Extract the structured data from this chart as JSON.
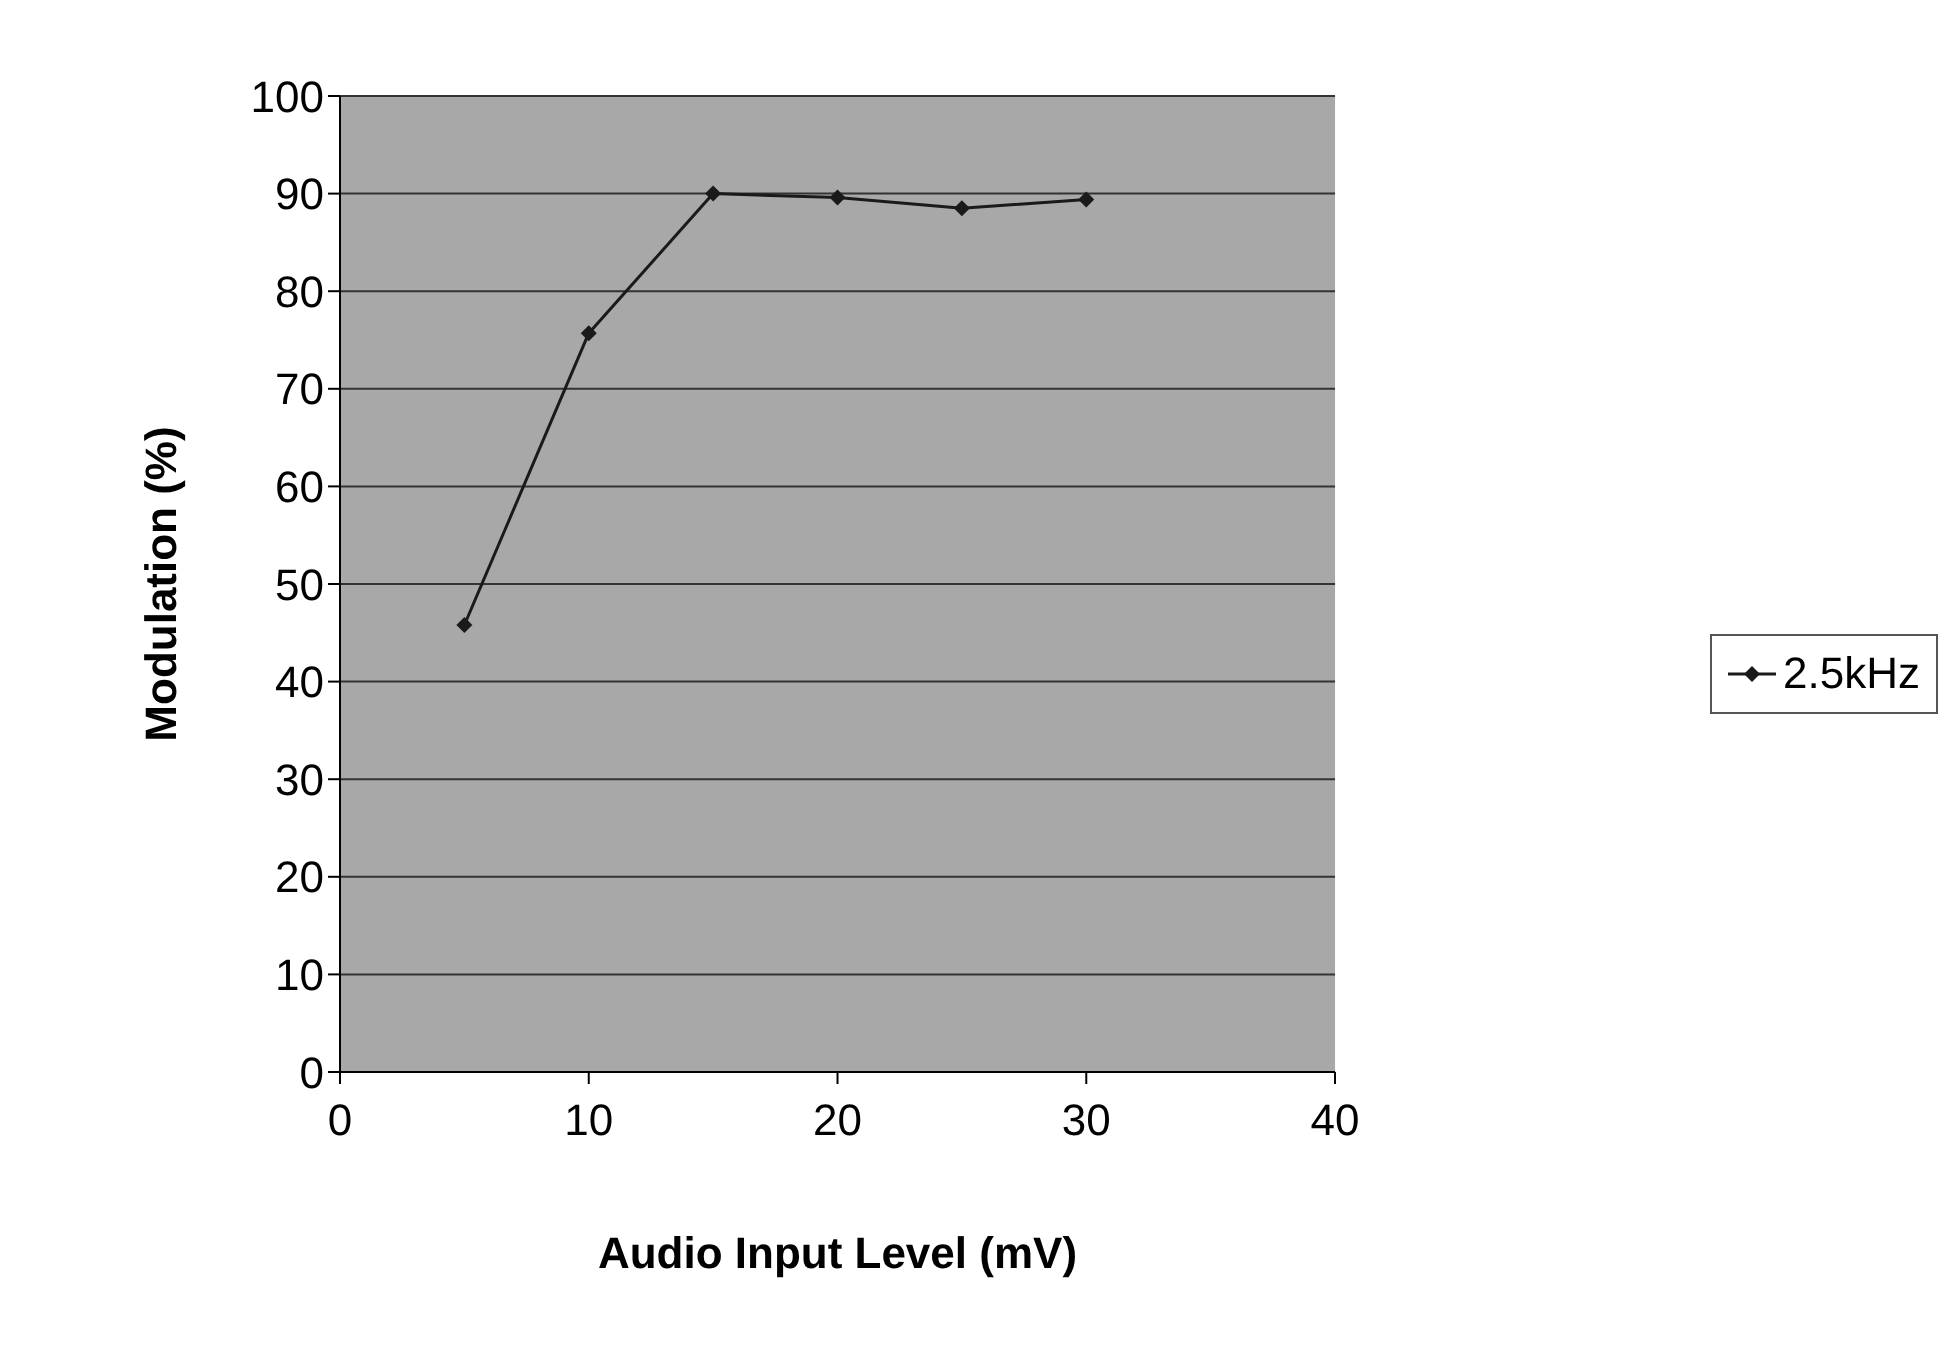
{
  "chart_data": {
    "type": "line",
    "xlabel": "Audio Input Level (mV)",
    "ylabel": "Modulation (%)",
    "x": [
      5,
      10,
      15,
      20,
      25,
      30
    ],
    "series": [
      {
        "name": "2.5kHz",
        "color": "#1a1a1a",
        "values": [
          45.8,
          75.7,
          90,
          89.6,
          88.5,
          89.4
        ]
      }
    ],
    "xlim": [
      0,
      40
    ],
    "xticks": [
      0,
      10,
      20,
      30,
      40
    ],
    "ylim": [
      0,
      100
    ],
    "yticks": [
      0,
      10,
      20,
      30,
      40,
      50,
      60,
      70,
      80,
      90,
      100
    ],
    "grid": "y",
    "legend": "right",
    "marker": "diamond",
    "line_style": "solid"
  }
}
